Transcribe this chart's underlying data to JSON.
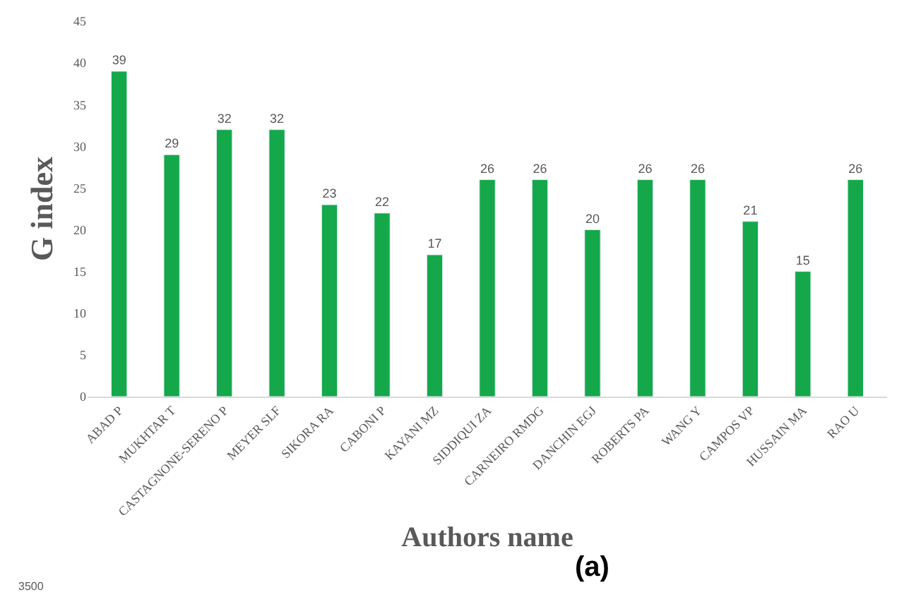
{
  "chart_data": {
    "type": "bar",
    "xlabel": "Authors name",
    "ylabel": "G index",
    "categories": [
      "ABAD P",
      "MUKHTAR T",
      "CASTAGNONE-SERENO P",
      "MEYER SLF",
      "SIKORA RA",
      "CABONI P",
      "KAYANI MZ",
      "SIDDIQUI ZA",
      "CARNEIRO RMDG",
      "DANCHIN EGJ",
      "ROBERTS PA",
      "WANG Y",
      "CAMPOS VP",
      "HUSSAIN MA",
      "RAO U"
    ],
    "values": [
      39,
      29,
      32,
      32,
      23,
      22,
      17,
      26,
      26,
      20,
      26,
      26,
      21,
      15,
      26
    ],
    "color": "#14a84b",
    "ylim": [
      0,
      45
    ],
    "yticks": [
      0,
      5,
      10,
      15,
      20,
      25,
      30,
      35,
      40,
      45
    ],
    "data_labels": true,
    "annotations": [
      "(a)",
      "3500"
    ]
  }
}
